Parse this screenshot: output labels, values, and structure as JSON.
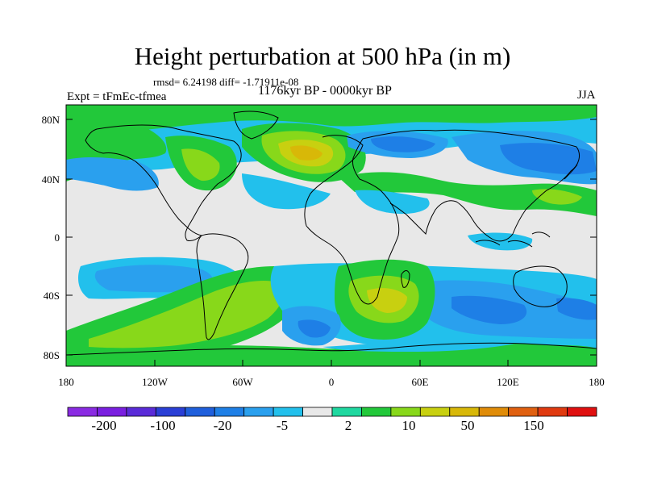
{
  "title": "Height perturbation at 500 hPa (in m)",
  "stats": "rmsd= 6.24198 diff= -1.71911e-08",
  "experiment": "Expt = tFmEc-tfmea",
  "period": "1176kyr BP - 0000kyr BP",
  "season": "JJA",
  "lat_ticks": [
    "80N",
    "40N",
    "0",
    "40S",
    "80S"
  ],
  "lon_ticks": [
    "180",
    "120W",
    "60W",
    "0",
    "60E",
    "120E",
    "180"
  ],
  "colorbar": {
    "colors": [
      "#8a2be2",
      "#7a1fe0",
      "#5a2bd8",
      "#2a3fd6",
      "#1f5fdc",
      "#1e7fe6",
      "#2aa0ee",
      "#22c0ec",
      "#e8e8e8",
      "#1fd8a0",
      "#22c83a",
      "#88d81a",
      "#c8d010",
      "#d8b808",
      "#e08c08",
      "#e06010",
      "#e03a10",
      "#e01010"
    ],
    "labels": [
      "-200",
      "-100",
      "-20",
      "-5",
      "2",
      "10",
      "50",
      "150"
    ]
  },
  "chart_data": {
    "type": "heatmap",
    "title": "Height perturbation at 500 hPa (in m)",
    "variable": "500 hPa geopotential height perturbation",
    "units": "m",
    "season": "JJA",
    "x_range": [
      -180,
      180
    ],
    "y_range": [
      -90,
      90
    ],
    "levels": [
      -200,
      -100,
      -20,
      -5,
      2,
      10,
      50,
      150
    ],
    "features": [
      {
        "name": "positive-anomaly-north-atlantic-europe",
        "lon": -15,
        "lat": 50,
        "value": 50
      },
      {
        "name": "positive-anomaly-south-atlantic",
        "lon": 45,
        "lat": -45,
        "value": 50
      },
      {
        "name": "positive-anomaly-south-pacific",
        "lon": -85,
        "lat": -50,
        "value": 20
      },
      {
        "name": "negative-anomaly-north-pacific",
        "lon": 150,
        "lat": 50,
        "value": -10
      },
      {
        "name": "negative-anomaly-indian-ocean",
        "lon": 100,
        "lat": -45,
        "value": -10
      },
      {
        "name": "negative-anomaly-south-atlantic-west",
        "lon": -10,
        "lat": -65,
        "value": -10
      }
    ]
  }
}
